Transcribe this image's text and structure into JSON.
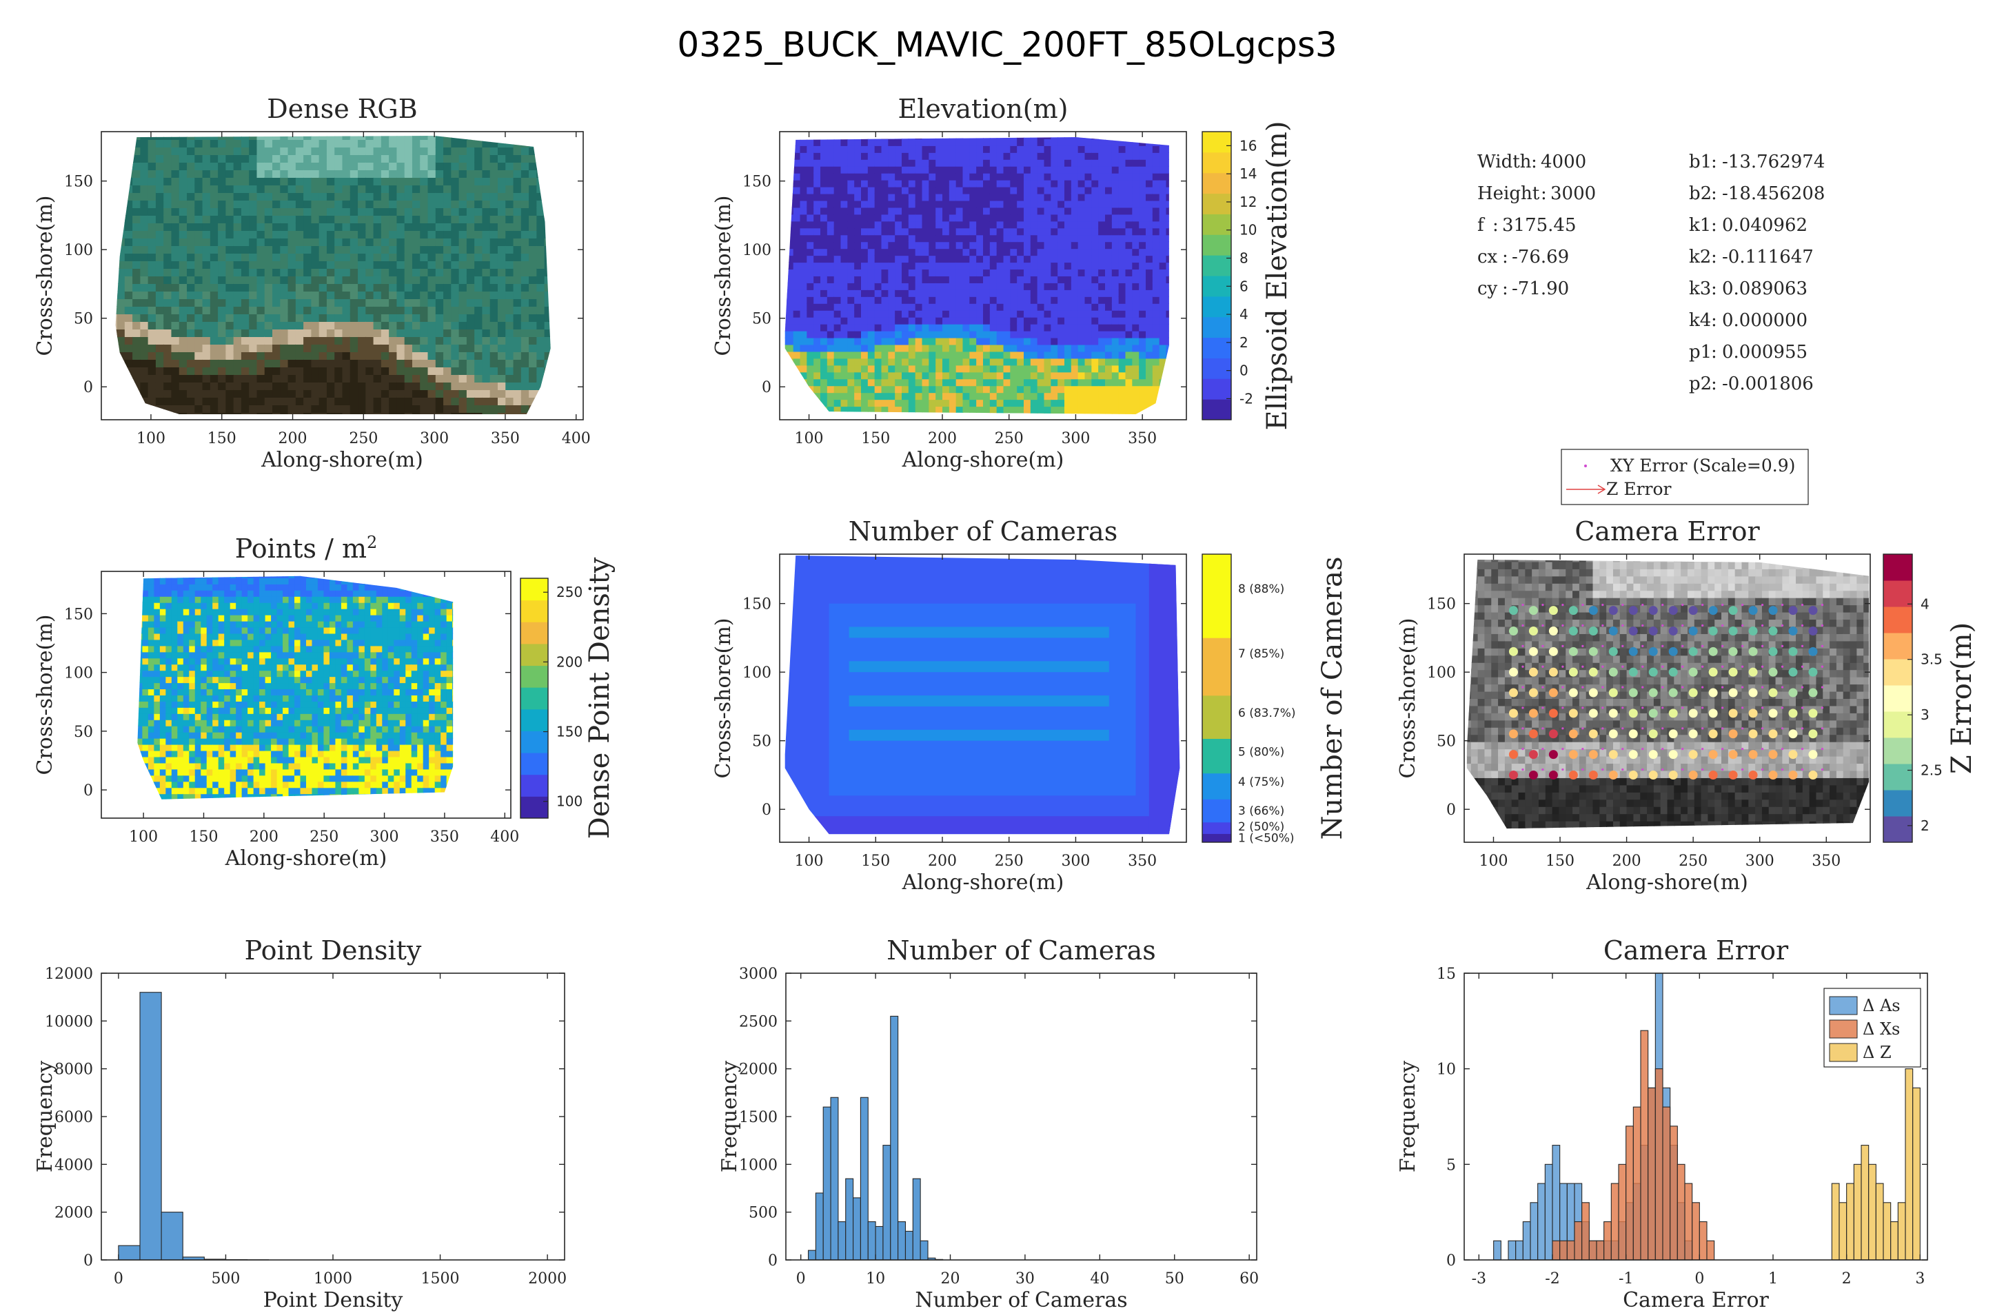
{
  "figure_title": "0325_BUCK_MAVIC_200FT_85OLgcps3",
  "colors": {
    "parula": [
      "#3e26a8",
      "#4744e8",
      "#2f6ff9",
      "#1e91e8",
      "#0fa9c9",
      "#27ba9d",
      "#6ec466",
      "#b9c23d",
      "#f3b940",
      "#f9d827",
      "#f9fb14"
    ],
    "bar_blue": "#5b9bd5",
    "bar_orange": "#e07b4c",
    "bar_yellow": "#f1c65a"
  },
  "camera_params": {
    "left": [
      {
        "label": "Width",
        "value": "4000"
      },
      {
        "label": "Height",
        "value": "3000"
      },
      {
        "label": "f",
        "value": "3175.45"
      },
      {
        "label": "cx",
        "value": "-76.69"
      },
      {
        "label": "cy",
        "value": "-71.90"
      }
    ],
    "right": [
      {
        "label": "b1",
        "value": "-13.762974"
      },
      {
        "label": "b2",
        "value": "-18.456208"
      },
      {
        "label": "k1",
        "value": "0.040962"
      },
      {
        "label": "k2",
        "value": "-0.111647"
      },
      {
        "label": "k3",
        "value": "0.089063"
      },
      {
        "label": "k4",
        "value": "0.000000"
      },
      {
        "label": "p1",
        "value": "0.000955"
      },
      {
        "label": "p2",
        "value": "-0.001806"
      }
    ]
  },
  "error_legend": {
    "xy": "XY Error (Scale=0.9)",
    "z": "Z Error"
  },
  "chart_data": [
    {
      "id": "dense-rgb",
      "type": "heatmap",
      "title": "Dense RGB",
      "xlabel": "Along-shore(m)",
      "ylabel": "Cross-shore(m)",
      "xlim": [
        65,
        405
      ],
      "ylim": [
        -24,
        186
      ],
      "xticks": [
        "100",
        "150",
        "200",
        "250",
        "300",
        "350",
        "400"
      ],
      "yticks": [
        "0",
        "50",
        "100",
        "150"
      ]
    },
    {
      "id": "elevation",
      "type": "heatmap",
      "title": "Elevation(m)",
      "xlabel": "Along-shore(m)",
      "ylabel": "Cross-shore(m)",
      "xlim": [
        78,
        383
      ],
      "ylim": [
        -24,
        186
      ],
      "xticks": [
        "100",
        "150",
        "200",
        "250",
        "300",
        "350"
      ],
      "yticks": [
        "0",
        "50",
        "100",
        "150"
      ],
      "colorbar": {
        "label": "Ellipsoid Elevation(m)",
        "range": [
          -3.5,
          17
        ],
        "ticks": [
          "-2",
          "0",
          "2",
          "4",
          "6",
          "8",
          "10",
          "12",
          "14",
          "16"
        ]
      }
    },
    {
      "id": "points-per-m2",
      "type": "heatmap",
      "title": "Points / m",
      "title_sup": "2",
      "xlabel": "Along-shore(m)",
      "ylabel": "Cross-shore(m)",
      "xlim": [
        65,
        405
      ],
      "ylim": [
        -24,
        186
      ],
      "xticks": [
        "100",
        "150",
        "200",
        "250",
        "300",
        "350",
        "400"
      ],
      "yticks": [
        "0",
        "50",
        "100",
        "150"
      ],
      "colorbar": {
        "label": "Dense Point Density",
        "range": [
          88,
          260
        ],
        "ticks": [
          "100",
          "150",
          "200",
          "250"
        ]
      }
    },
    {
      "id": "camera-count-map",
      "type": "heatmap",
      "title": "Number of Cameras",
      "xlabel": "Along-shore(m)",
      "ylabel": "Cross-shore(m)",
      "xlim": [
        78,
        383
      ],
      "ylim": [
        -24,
        186
      ],
      "xticks": [
        "100",
        "150",
        "200",
        "250",
        "300",
        "350"
      ],
      "yticks": [
        "0",
        "50",
        "100",
        "150"
      ],
      "colorbar": {
        "label": "Number of Cameras",
        "ticks": [
          "1 (<50%)",
          "2 (50%)",
          "3 (66%)",
          "4 (75%)",
          "5 (80%)",
          "6 (83.7%)",
          "7 (85%)",
          "8 (88%)"
        ]
      }
    },
    {
      "id": "camera-error-map",
      "type": "scatter",
      "title": "Camera Error",
      "xlabel": "Along-shore(m)",
      "ylabel": "Cross-shore(m)",
      "xlim": [
        78,
        383
      ],
      "ylim": [
        -24,
        186
      ],
      "xticks": [
        "100",
        "150",
        "200",
        "250",
        "300",
        "350"
      ],
      "yticks": [
        "0",
        "50",
        "100",
        "150"
      ],
      "colorbar": {
        "label": "Z Error(m)",
        "range": [
          1.85,
          4.45
        ],
        "ticks": [
          "2",
          "2.5",
          "3",
          "3.5",
          "4"
        ]
      }
    },
    {
      "id": "point-density-hist",
      "type": "bar",
      "title": "Point Density",
      "xlabel": "Point Density",
      "ylabel": "Frequency",
      "xlim": [
        -80,
        2080
      ],
      "ylim": [
        0,
        12000
      ],
      "xticks": [
        "0",
        "500",
        "1000",
        "1500",
        "2000"
      ],
      "yticks": [
        "0",
        "2000",
        "4000",
        "6000",
        "8000",
        "10000",
        "12000"
      ],
      "bin_width": 100,
      "bins": [
        {
          "x": 0,
          "y": 600
        },
        {
          "x": 100,
          "y": 11200
        },
        {
          "x": 200,
          "y": 2000
        },
        {
          "x": 300,
          "y": 120
        },
        {
          "x": 400,
          "y": 30
        },
        {
          "x": 500,
          "y": 15
        },
        {
          "x": 600,
          "y": 8
        }
      ]
    },
    {
      "id": "camera-count-hist",
      "type": "bar",
      "title": "Number of Cameras",
      "xlabel": "Number of Cameras",
      "ylabel": "Frequency",
      "xlim": [
        -2,
        61
      ],
      "ylim": [
        0,
        3000
      ],
      "xticks": [
        "0",
        "10",
        "20",
        "30",
        "40",
        "50",
        "60"
      ],
      "yticks": [
        "0",
        "500",
        "1000",
        "1500",
        "2000",
        "2500",
        "3000"
      ],
      "bin_width": 1,
      "bins": [
        {
          "x": 1,
          "y": 100
        },
        {
          "x": 2,
          "y": 700
        },
        {
          "x": 3,
          "y": 1600
        },
        {
          "x": 4,
          "y": 1700
        },
        {
          "x": 5,
          "y": 400
        },
        {
          "x": 6,
          "y": 850
        },
        {
          "x": 7,
          "y": 650
        },
        {
          "x": 8,
          "y": 1700
        },
        {
          "x": 9,
          "y": 400
        },
        {
          "x": 10,
          "y": 350
        },
        {
          "x": 11,
          "y": 1200
        },
        {
          "x": 12,
          "y": 2550
        },
        {
          "x": 13,
          "y": 400
        },
        {
          "x": 14,
          "y": 300
        },
        {
          "x": 15,
          "y": 850
        },
        {
          "x": 16,
          "y": 200
        },
        {
          "x": 17,
          "y": 20
        },
        {
          "x": 18,
          "y": 5
        }
      ]
    },
    {
      "id": "camera-error-hist",
      "type": "bar",
      "title": "Camera Error",
      "xlabel": "Camera Error",
      "ylabel": "Frequency",
      "xlim": [
        -3.2,
        3.1
      ],
      "ylim": [
        0,
        15
      ],
      "xticks": [
        "-3",
        "-2",
        "-1",
        "0",
        "1",
        "2",
        "3"
      ],
      "yticks": [
        "0",
        "5",
        "10",
        "15"
      ],
      "bin_width": 0.1,
      "series": [
        {
          "name": "Δ As",
          "x": [
            -2.8,
            -2.6,
            -2.5,
            -2.4,
            -2.3,
            -2.2,
            -2.1,
            -2.0,
            -1.9,
            -1.8,
            -1.7,
            -1.6,
            -1.5,
            -1.4,
            -1.3,
            -1.2,
            -1.1,
            -1.0,
            -0.9,
            -0.8,
            -0.7,
            -0.6,
            -0.5,
            -0.4,
            -0.3,
            -0.2
          ],
          "y": [
            1,
            1,
            1,
            2,
            3,
            4,
            5,
            6,
            4,
            4,
            4,
            2,
            1,
            1,
            1,
            1,
            2,
            3,
            4,
            6,
            9,
            15,
            9,
            6,
            3,
            1
          ]
        },
        {
          "name": "Δ Xs",
          "x": [
            -2.0,
            -1.9,
            -1.8,
            -1.7,
            -1.6,
            -1.5,
            -1.4,
            -1.3,
            -1.2,
            -1.1,
            -1.0,
            -0.9,
            -0.8,
            -0.7,
            -0.6,
            -0.5,
            -0.4,
            -0.3,
            -0.2,
            -0.1,
            0.0,
            0.1
          ],
          "y": [
            1,
            1,
            1,
            2,
            3,
            1,
            1,
            2,
            4,
            5,
            7,
            8,
            12,
            9,
            10,
            8,
            7,
            5,
            4,
            3,
            2,
            1
          ]
        },
        {
          "name": "Δ Z",
          "x": [
            1.8,
            1.9,
            2.0,
            2.1,
            2.2,
            2.3,
            2.4,
            2.5,
            2.6,
            2.7,
            2.8,
            2.9
          ],
          "y": [
            4,
            3,
            4,
            5,
            6,
            5,
            4,
            3,
            2,
            3,
            10,
            9
          ]
        }
      ]
    }
  ]
}
